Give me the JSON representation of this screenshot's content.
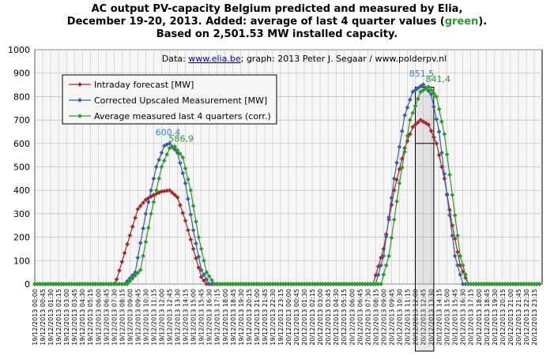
{
  "chart_data": {
    "type": "line",
    "title_line1": "AC output PV-capacity Belgium predicted and measured by Elia,",
    "title_line2_prefix": "December 19-20, 2013. Added: average of last 4 quarter values (",
    "title_line2_green": "green",
    "title_line2_suffix": ").",
    "title_line3": "Based on 2,501.53 MW installed capacity.",
    "subtitle_prefix": "Data: ",
    "subtitle_link": "www.elia.be",
    "subtitle_suffix": "; graph: 2013 Peter J. Segaar / www.polderpv.nl",
    "ylim": [
      0,
      1000
    ],
    "yticks": [
      0,
      100,
      200,
      300,
      400,
      500,
      600,
      700,
      800,
      900,
      1000
    ],
    "grid": true,
    "legend_position": "top-left",
    "x_tick_labels": [
      "19/12/2013 00:00",
      "19/12/2013 00:45",
      "19/12/2013 01:30",
      "19/12/2013 02:15",
      "19/12/2013 03:00",
      "19/12/2013 03:45",
      "19/12/2013 04:30",
      "19/12/2013 05:15",
      "19/12/2013 06:00",
      "19/12/2013 06:45",
      "19/12/2013 07:30",
      "19/12/2013 08:15",
      "19/12/2013 09:00",
      "19/12/2013 09:45",
      "19/12/2013 10:30",
      "19/12/2013 11:15",
      "19/12/2013 12:00",
      "19/12/2013 12:45",
      "19/12/2013 13:30",
      "19/12/2013 14:15",
      "19/12/2013 15:00",
      "19/12/2013 15:45",
      "19/12/2013 16:30",
      "19/12/2013 17:15",
      "19/12/2013 18:00",
      "19/12/2013 18:45",
      "19/12/2013 19:30",
      "19/12/2013 20:15",
      "19/12/2013 21:00",
      "19/12/2013 21:45",
      "19/12/2013 22:30",
      "19/12/2013 23:15",
      "20/12/2013 00:00",
      "20/12/2013 00:45",
      "20/12/2013 01:30",
      "20/12/2013 02:15",
      "20/12/2013 03:00",
      "20/12/2013 03:45",
      "20/12/2013 04:30",
      "20/12/2013 05:15",
      "20/12/2013 06:00",
      "20/12/2013 06:45",
      "20/12/2013 07:30",
      "20/12/2013 08:15",
      "20/12/2013 09:00",
      "20/12/2013 09:45",
      "20/12/2013 10:30",
      "20/12/2013 11:15",
      "20/12/2013 12:00",
      "20/12/2013 12:45",
      "20/12/2013 13:30",
      "20/12/2013 14:15",
      "20/12/2013 15:00",
      "20/12/2013 15:45",
      "20/12/2013 16:30",
      "20/12/2013 17:15",
      "20/12/2013 18:00",
      "20/12/2013 18:45",
      "20/12/2013 19:30",
      "20/12/2013 20:15",
      "20/12/2013 21:00",
      "20/12/2013 21:45",
      "20/12/2013 22:30",
      "20/12/2013 23:15"
    ],
    "peaks": [
      {
        "day": "19/12/2013",
        "corrected_max": 600.4,
        "average_max": 586.9
      },
      {
        "day": "20/12/2013",
        "corrected_max": 851.5,
        "average_max": 841.4
      }
    ],
    "highlight_window": {
      "x_start": "20/12/2013 12:00",
      "x_end": "20/12/2013 13:45",
      "y_level": 600
    },
    "series": [
      {
        "name": "Intraday forecast [MW]",
        "color": "#a52a2a",
        "day1": [
          {
            "t": "07:45",
            "v": 20
          },
          {
            "t": "08:45",
            "v": 170
          },
          {
            "t": "09:45",
            "v": 320
          },
          {
            "t": "10:30",
            "v": 360
          },
          {
            "t": "11:15",
            "v": 380
          },
          {
            "t": "12:00",
            "v": 395
          },
          {
            "t": "12:45",
            "v": 400
          },
          {
            "t": "13:30",
            "v": 370
          },
          {
            "t": "14:15",
            "v": 270
          },
          {
            "t": "15:00",
            "v": 150
          },
          {
            "t": "15:45",
            "v": 30
          },
          {
            "t": "16:15",
            "v": 0
          }
        ],
        "day2": [
          {
            "t": "08:00",
            "v": 0
          },
          {
            "t": "09:00",
            "v": 150
          },
          {
            "t": "10:00",
            "v": 400
          },
          {
            "t": "11:00",
            "v": 580
          },
          {
            "t": "11:45",
            "v": 670
          },
          {
            "t": "12:30",
            "v": 700
          },
          {
            "t": "13:15",
            "v": 680
          },
          {
            "t": "14:00",
            "v": 600
          },
          {
            "t": "14:45",
            "v": 450
          },
          {
            "t": "15:30",
            "v": 250
          },
          {
            "t": "16:15",
            "v": 80
          },
          {
            "t": "17:00",
            "v": 0
          }
        ]
      },
      {
        "name": "Corrected Upscaled Measurement [MW]",
        "color": "#3a5faa",
        "day1": [
          {
            "t": "08:30",
            "v": 0
          },
          {
            "t": "09:30",
            "v": 50
          },
          {
            "t": "10:30",
            "v": 300
          },
          {
            "t": "11:30",
            "v": 500
          },
          {
            "t": "12:15",
            "v": 590
          },
          {
            "t": "12:45",
            "v": 600.4
          },
          {
            "t": "13:30",
            "v": 560
          },
          {
            "t": "14:15",
            "v": 430
          },
          {
            "t": "15:00",
            "v": 230
          },
          {
            "t": "15:45",
            "v": 60
          },
          {
            "t": "16:30",
            "v": 0
          }
        ],
        "day2": [
          {
            "t": "08:15",
            "v": 0
          },
          {
            "t": "09:00",
            "v": 120
          },
          {
            "t": "10:00",
            "v": 450
          },
          {
            "t": "11:00",
            "v": 720
          },
          {
            "t": "11:45",
            "v": 820
          },
          {
            "t": "12:45",
            "v": 851.5
          },
          {
            "t": "13:30",
            "v": 810
          },
          {
            "t": "14:15",
            "v": 650
          },
          {
            "t": "15:00",
            "v": 380
          },
          {
            "t": "15:45",
            "v": 120
          },
          {
            "t": "16:30",
            "v": 0
          }
        ]
      },
      {
        "name": "Average measured last 4 quarters (corr.)",
        "color": "#2e9a2e",
        "day1": [
          {
            "t": "08:45",
            "v": 0
          },
          {
            "t": "10:00",
            "v": 60
          },
          {
            "t": "11:00",
            "v": 300
          },
          {
            "t": "12:00",
            "v": 500
          },
          {
            "t": "12:45",
            "v": 580
          },
          {
            "t": "13:15",
            "v": 586.9
          },
          {
            "t": "14:00",
            "v": 540
          },
          {
            "t": "14:45",
            "v": 400
          },
          {
            "t": "15:30",
            "v": 200
          },
          {
            "t": "16:15",
            "v": 50
          },
          {
            "t": "17:00",
            "v": 0
          }
        ],
        "day2": [
          {
            "t": "08:45",
            "v": 0
          },
          {
            "t": "09:30",
            "v": 120
          },
          {
            "t": "10:30",
            "v": 430
          },
          {
            "t": "11:30",
            "v": 700
          },
          {
            "t": "12:30",
            "v": 820
          },
          {
            "t": "13:15",
            "v": 841.4
          },
          {
            "t": "14:00",
            "v": 800
          },
          {
            "t": "14:45",
            "v": 640
          },
          {
            "t": "15:30",
            "v": 380
          },
          {
            "t": "16:15",
            "v": 120
          },
          {
            "t": "17:00",
            "v": 0
          }
        ]
      }
    ]
  }
}
